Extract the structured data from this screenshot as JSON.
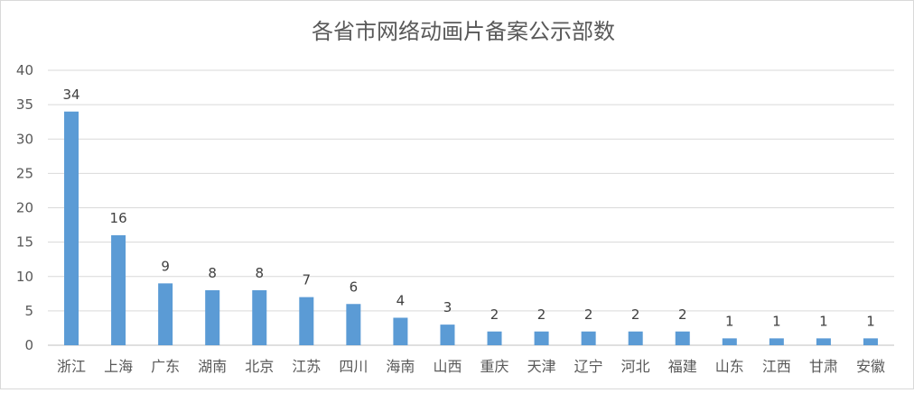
{
  "chart_data": {
    "type": "bar",
    "title": "各省市网络动画片备案公示部数",
    "categories": [
      "浙江",
      "上海",
      "广东",
      "湖南",
      "北京",
      "江苏",
      "四川",
      "海南",
      "山西",
      "重庆",
      "天津",
      "辽宁",
      "河北",
      "福建",
      "山东",
      "江西",
      "甘肃",
      "安徽"
    ],
    "values": [
      34,
      16,
      9,
      8,
      8,
      7,
      6,
      4,
      3,
      2,
      2,
      2,
      2,
      2,
      1,
      1,
      1,
      1
    ],
    "ylim": [
      0,
      40
    ],
    "yticks": [
      "0",
      "5",
      "10",
      "15",
      "20",
      "25",
      "30",
      "35",
      "40"
    ],
    "xlabel": "",
    "ylabel": "",
    "grid": true,
    "bar_color": "#5b9bd5"
  }
}
